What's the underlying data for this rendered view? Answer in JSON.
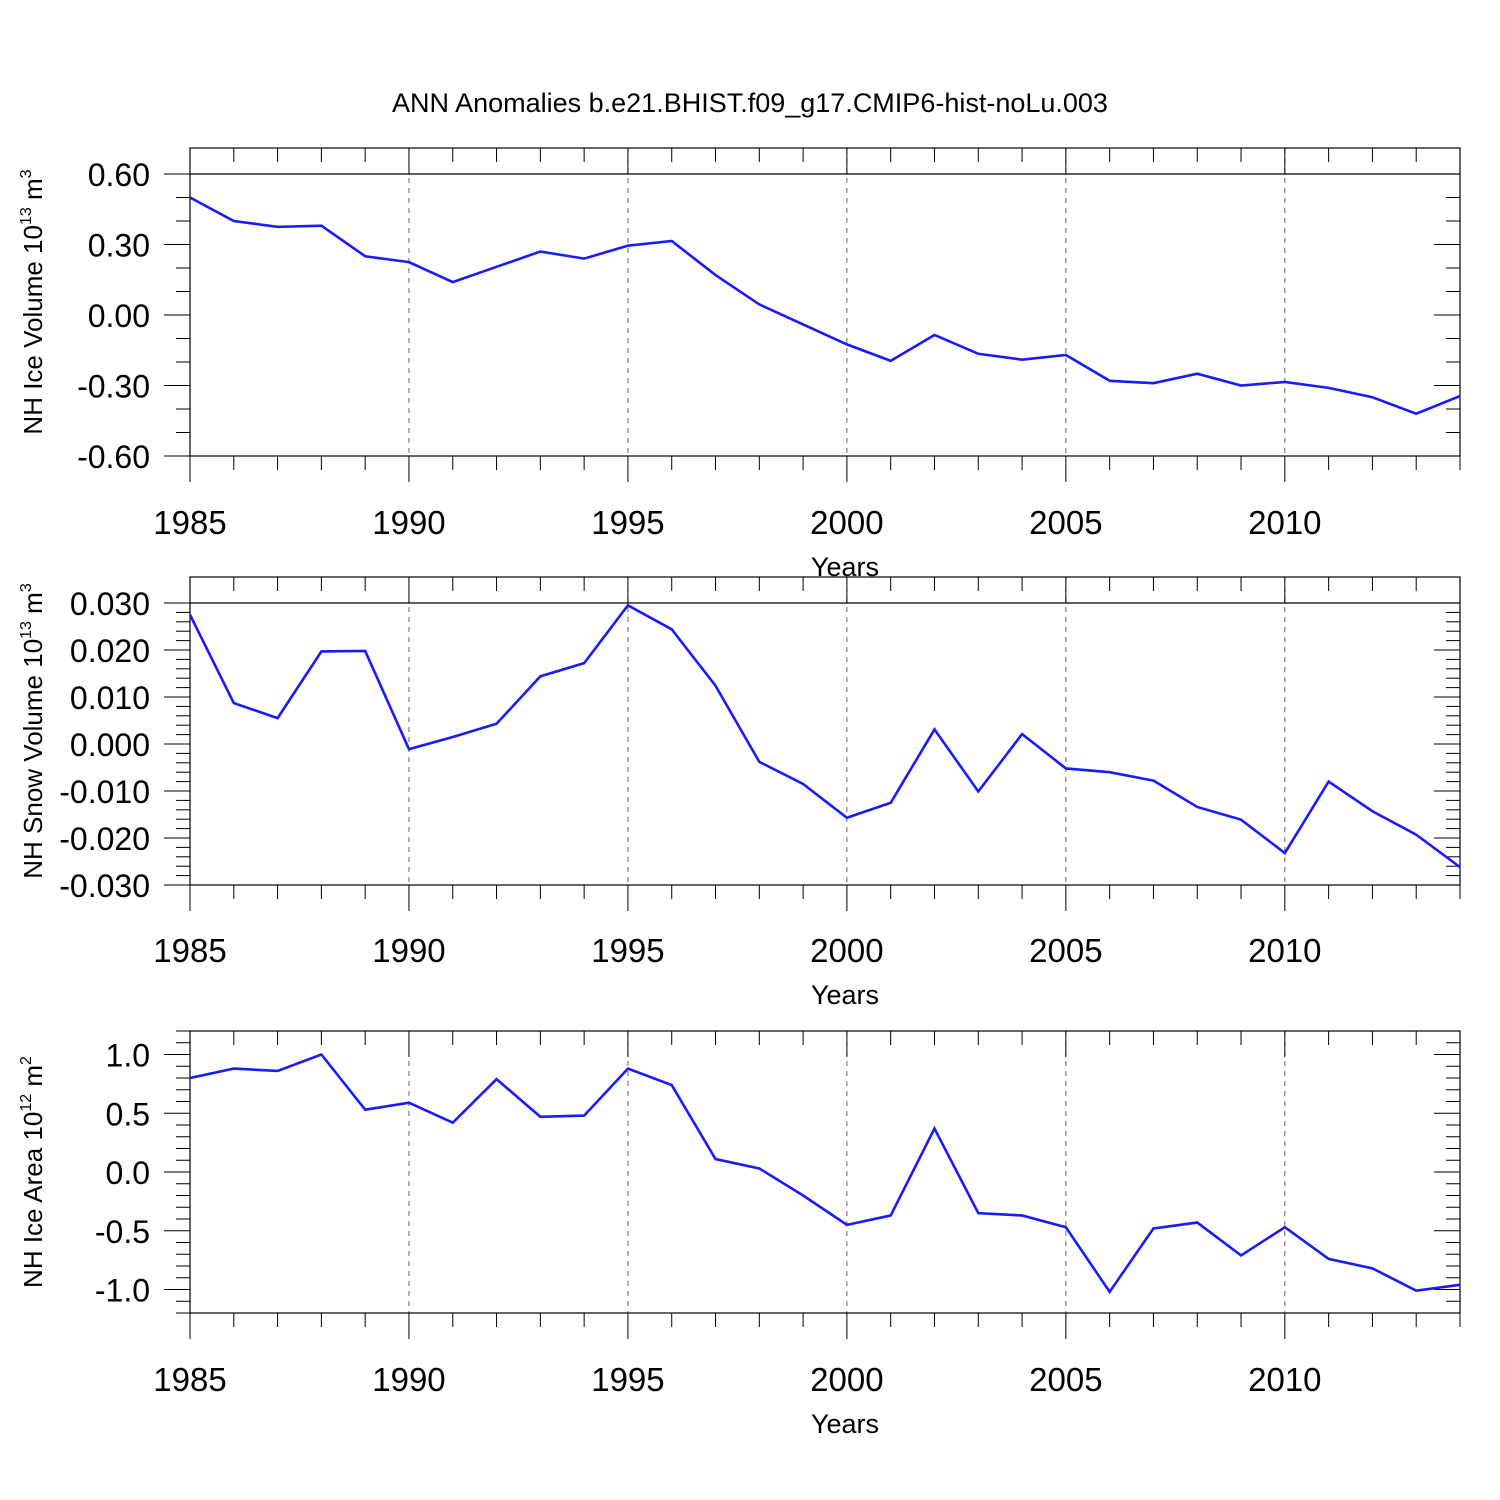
{
  "figure": {
    "title": "ANN Anomalies b.e21.BHIST.f09_g17.CMIP6-hist-noLu.003",
    "line_color": "#1a1aff",
    "grid_color": "#666666"
  },
  "chart_data": [
    {
      "type": "line",
      "id": "ice-volume",
      "title": "",
      "xlabel": "Years",
      "ylabel": {
        "base": "NH Ice Volume 10",
        "exp": "13",
        "unit": " m",
        "unit_exp": "3"
      },
      "xlim": [
        1985,
        2014
      ],
      "ylim": [
        -0.6,
        0.6
      ],
      "ylim_frame": [
        -0.6,
        0.6
      ],
      "yticks": [
        0.6,
        0.3,
        0.0,
        -0.3,
        -0.6
      ],
      "ytick_labels": [
        "0.60",
        "0.30",
        "0.00",
        "-0.30",
        "-0.60"
      ],
      "y_minor_step": 0.1,
      "xticks": [
        1985,
        1990,
        1995,
        2000,
        2005,
        2010
      ],
      "xtick_labels": [
        "1985",
        "1990",
        "1995",
        "2000",
        "2005",
        "2010"
      ],
      "grid_x": [
        1990,
        1995,
        2000,
        2005,
        2010
      ],
      "x": [
        1985,
        1986,
        1987,
        1988,
        1989,
        1990,
        1991,
        1992,
        1993,
        1994,
        1995,
        1996,
        1997,
        1998,
        1999,
        2000,
        2001,
        2002,
        2003,
        2004,
        2005,
        2006,
        2007,
        2008,
        2009,
        2010,
        2011,
        2012,
        2013,
        2014
      ],
      "y": [
        0.5,
        0.4,
        0.375,
        0.38,
        0.25,
        0.225,
        0.14,
        0.205,
        0.27,
        0.24,
        0.295,
        0.315,
        0.17,
        0.045,
        -0.04,
        -0.125,
        -0.195,
        -0.085,
        -0.165,
        -0.19,
        -0.17,
        -0.28,
        -0.29,
        -0.25,
        -0.3,
        -0.285,
        -0.31,
        -0.35,
        -0.42,
        -0.345
      ]
    },
    {
      "type": "line",
      "id": "snow-volume",
      "title": "",
      "xlabel": "Years",
      "ylabel": {
        "base": "NH Snow Volume 10",
        "exp": "13",
        "unit": " m",
        "unit_exp": "3"
      },
      "xlim": [
        1985,
        2014
      ],
      "ylim": [
        -0.03,
        0.03
      ],
      "ylim_frame": [
        -0.03,
        0.03
      ],
      "yticks": [
        0.03,
        0.02,
        0.01,
        0.0,
        -0.01,
        -0.02,
        -0.03
      ],
      "ytick_labels": [
        "0.030",
        "0.020",
        "0.010",
        "0.000",
        "-0.010",
        "-0.020",
        "-0.030"
      ],
      "y_minor_step": 0.002,
      "xticks": [
        1985,
        1990,
        1995,
        2000,
        2005,
        2010
      ],
      "xtick_labels": [
        "1985",
        "1990",
        "1995",
        "2000",
        "2005",
        "2010"
      ],
      "grid_x": [
        1990,
        1995,
        2000,
        2005,
        2010
      ],
      "x": [
        1985,
        1986,
        1987,
        1988,
        1989,
        1990,
        1991,
        1992,
        1993,
        1994,
        1995,
        1996,
        1997,
        1998,
        1999,
        2000,
        2001,
        2002,
        2003,
        2004,
        2005,
        2006,
        2007,
        2008,
        2009,
        2010,
        2011,
        2012,
        2013,
        2014
      ],
      "y": [
        0.0275,
        0.0087,
        0.0055,
        0.0197,
        0.0198,
        -0.0011,
        0.0015,
        0.0043,
        0.0144,
        0.0172,
        0.0295,
        0.0244,
        0.0124,
        -0.0038,
        -0.0085,
        -0.0157,
        -0.0125,
        0.0031,
        -0.0101,
        0.0021,
        -0.0052,
        -0.006,
        -0.0078,
        -0.0134,
        -0.0161,
        -0.0232,
        -0.008,
        -0.0143,
        -0.0193,
        -0.0262
      ]
    },
    {
      "type": "line",
      "id": "ice-area",
      "title": "",
      "xlabel": "Years",
      "ylabel": {
        "base": "NH Ice Area 10",
        "exp": "12",
        "unit": " m",
        "unit_exp": "2"
      },
      "xlim": [
        1985,
        2014
      ],
      "ylim": [
        -1.2,
        1.2
      ],
      "ylim_frame": [
        -1.2,
        1.2
      ],
      "yticks": [
        1.0,
        0.5,
        0.0,
        -0.5,
        -1.0
      ],
      "ytick_labels": [
        "1.0",
        "0.5",
        "0.0",
        "-0.5",
        "-1.0"
      ],
      "y_minor_step": 0.1,
      "xticks": [
        1985,
        1990,
        1995,
        2000,
        2005,
        2010
      ],
      "xtick_labels": [
        "1985",
        "1990",
        "1995",
        "2000",
        "2005",
        "2010"
      ],
      "grid_x": [
        1990,
        1995,
        2000,
        2005,
        2010
      ],
      "x": [
        1985,
        1986,
        1987,
        1988,
        1989,
        1990,
        1991,
        1992,
        1993,
        1994,
        1995,
        1996,
        1997,
        1998,
        1999,
        2000,
        2001,
        2002,
        2003,
        2004,
        2005,
        2006,
        2007,
        2008,
        2009,
        2010,
        2011,
        2012,
        2013,
        2014
      ],
      "y": [
        0.8,
        0.88,
        0.86,
        1.0,
        0.53,
        0.59,
        0.42,
        0.79,
        0.47,
        0.48,
        0.88,
        0.74,
        0.11,
        0.03,
        -0.2,
        -0.45,
        -0.37,
        0.37,
        -0.35,
        -0.37,
        -0.47,
        -1.02,
        -0.48,
        -0.43,
        -0.71,
        -0.47,
        -0.74,
        -0.82,
        -1.01,
        -0.96
      ]
    }
  ]
}
